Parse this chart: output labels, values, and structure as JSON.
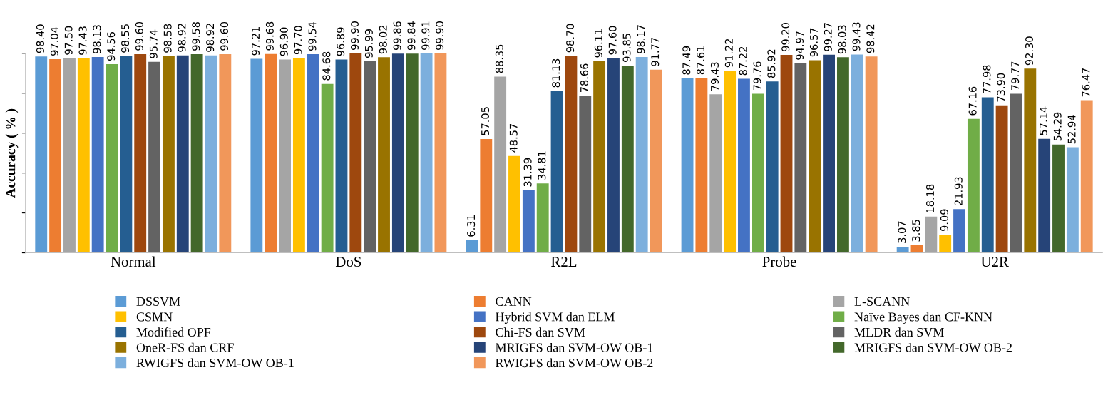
{
  "chart_data": {
    "type": "bar",
    "ylabel": "Accuracy ( % )",
    "categories": [
      "Normal",
      "DoS",
      "R2L",
      "Probe",
      "U2R"
    ],
    "ylim": [
      0,
      100
    ],
    "yticks": [
      {
        "value": 0,
        "label": null
      },
      {
        "value": 20,
        "label": null
      },
      {
        "value": 40,
        "label": null
      },
      {
        "value": 60,
        "label": null
      },
      {
        "value": 80,
        "label": null
      },
      {
        "value": 100,
        "label": null
      }
    ],
    "tick_labels": "x",
    "grid": false,
    "legend": "bottom",
    "series": [
      {
        "name": "DSSVM",
        "color": "#5b9bd5",
        "values": [
          98.4,
          97.21,
          6.31,
          87.49,
          3.07
        ],
        "value_labels": [
          "98.40",
          "97.21",
          "6.31",
          "87.49",
          "3.07"
        ]
      },
      {
        "name": "CANN",
        "color": "#ed7d31",
        "values": [
          97.04,
          99.68,
          57.05,
          87.61,
          3.85
        ],
        "value_labels": [
          "97.04",
          "99.68",
          "57.05",
          "87.61",
          "3.85"
        ]
      },
      {
        "name": "L-SCANN",
        "color": "#a5a5a5",
        "values": [
          97.5,
          96.9,
          88.35,
          79.43,
          18.18
        ],
        "value_labels": [
          "97.50",
          "96.90",
          "88.35",
          "79.43",
          "18.18"
        ]
      },
      {
        "name": "CSMN",
        "color": "#ffc000",
        "values": [
          97.43,
          97.7,
          48.57,
          91.22,
          9.09
        ],
        "value_labels": [
          "97.43",
          "97.70",
          "48.57",
          "91.22",
          "9.09"
        ]
      },
      {
        "name": "Hybrid SVM dan ELM",
        "color": "#4472c4",
        "values": [
          98.13,
          99.54,
          31.39,
          87.22,
          21.93
        ],
        "value_labels": [
          "98.13",
          "99.54",
          "31.39",
          "87.22",
          "21.93"
        ]
      },
      {
        "name": "Naïve Bayes dan CF-KNN",
        "color": "#70ad47",
        "values": [
          94.56,
          84.68,
          34.81,
          79.76,
          67.16
        ],
        "value_labels": [
          "94.56",
          "84.68",
          "34.81",
          "79.76",
          "67.16"
        ]
      },
      {
        "name": "Modified OPF",
        "color": "#255e91",
        "values": [
          98.55,
          96.89,
          81.13,
          85.92,
          77.98
        ],
        "value_labels": [
          "98.55",
          "96.89",
          "81.13",
          "85.92",
          "77.98"
        ]
      },
      {
        "name": "Chi-FS dan SVM",
        "color": "#9e480e",
        "values": [
          99.6,
          99.9,
          98.7,
          99.2,
          73.9
        ],
        "value_labels": [
          "99.60",
          "99.90",
          "98.70",
          "99.20",
          "73.90"
        ]
      },
      {
        "name": "MLDR dan SVM",
        "color": "#636363",
        "values": [
          95.74,
          95.99,
          78.66,
          94.97,
          79.77
        ],
        "value_labels": [
          "95.74",
          "95.99",
          "78.66",
          "94.97",
          "79.77"
        ]
      },
      {
        "name": "OneR-FS dan CRF",
        "color": "#997300",
        "values": [
          98.58,
          98.02,
          96.11,
          96.57,
          92.3
        ],
        "value_labels": [
          "98.58",
          "98.02",
          "96.11",
          "96.57",
          "92.30"
        ]
      },
      {
        "name": "MRIGFS dan SVM-OW OB-1",
        "color": "#264478",
        "values": [
          98.92,
          99.86,
          97.6,
          99.27,
          57.14
        ],
        "value_labels": [
          "98.92",
          "99.86",
          "97.60",
          "99.27",
          "57.14"
        ]
      },
      {
        "name": "MRIGFS dan SVM-OW OB-2",
        "color": "#43682b",
        "values": [
          99.58,
          99.84,
          93.85,
          98.03,
          54.29
        ],
        "value_labels": [
          "99.58",
          "99.84",
          "93.85",
          "98.03",
          "54.29"
        ]
      },
      {
        "name": "RWIGFS dan SVM-OW OB-1",
        "color": "#7cafdd",
        "values": [
          98.92,
          99.91,
          98.17,
          99.43,
          52.94
        ],
        "value_labels": [
          "98.92",
          "99.91",
          "98.17",
          "99.43",
          "52.94"
        ]
      },
      {
        "name": "RWIGFS dan SVM-OW OB-2",
        "color": "#f1975a",
        "values": [
          99.6,
          99.9,
          91.77,
          98.42,
          76.47
        ],
        "value_labels": [
          "99.60",
          "99.90",
          "91.77",
          "98.42",
          "76.47"
        ]
      }
    ]
  }
}
